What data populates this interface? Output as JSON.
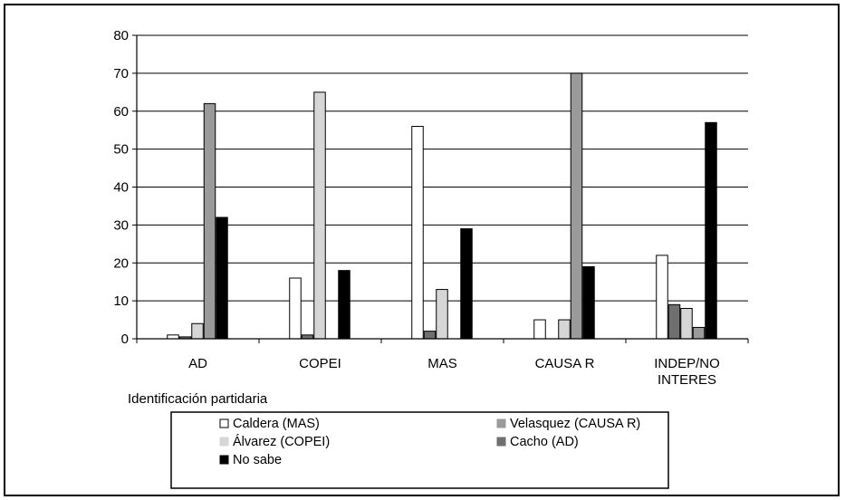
{
  "chart_data": {
    "type": "bar",
    "title": "",
    "xlabel": "Identificación partidaria",
    "ylabel": "",
    "ylim": [
      0,
      80
    ],
    "yticks": [
      0,
      10,
      20,
      30,
      40,
      50,
      60,
      70,
      80
    ],
    "grid": true,
    "legend_position": "bottom",
    "categories": [
      "AD",
      "COPEI",
      "MAS",
      "CAUSA R",
      "INDEP/NO INTERES"
    ],
    "category_label_lines": [
      [
        "AD"
      ],
      [
        "COPEI"
      ],
      [
        "MAS"
      ],
      [
        "CAUSA R"
      ],
      [
        "INDEP/NO",
        "INTERES"
      ]
    ],
    "series": [
      {
        "name": "Caldera (MAS)",
        "color": "#ffffff",
        "values": [
          1,
          16,
          56,
          5,
          22
        ]
      },
      {
        "name": "Cacho (AD)",
        "color": "#6f6f6f",
        "values": [
          0.5,
          1,
          2,
          0,
          9
        ]
      },
      {
        "name": "Álvarez (COPEI)",
        "color": "#d6d6d6",
        "values": [
          4,
          65,
          13,
          5,
          8
        ]
      },
      {
        "name": "Velasquez (CAUSA R)",
        "color": "#9a9a9a",
        "values": [
          62,
          0,
          0,
          70,
          3
        ]
      },
      {
        "name": "No sabe",
        "color": "#000000",
        "values": [
          32,
          18,
          29,
          19,
          57
        ]
      }
    ],
    "legend_entries": [
      {
        "name": "Caldera (MAS)",
        "color": "#ffffff"
      },
      {
        "name": "Velasquez (CAUSA R)",
        "color": "#9a9a9a"
      },
      {
        "name": "Álvarez (COPEI)",
        "color": "#d6d6d6"
      },
      {
        "name": "Cacho (AD)",
        "color": "#6f6f6f"
      },
      {
        "name": "No sabe",
        "color": "#000000"
      }
    ]
  }
}
